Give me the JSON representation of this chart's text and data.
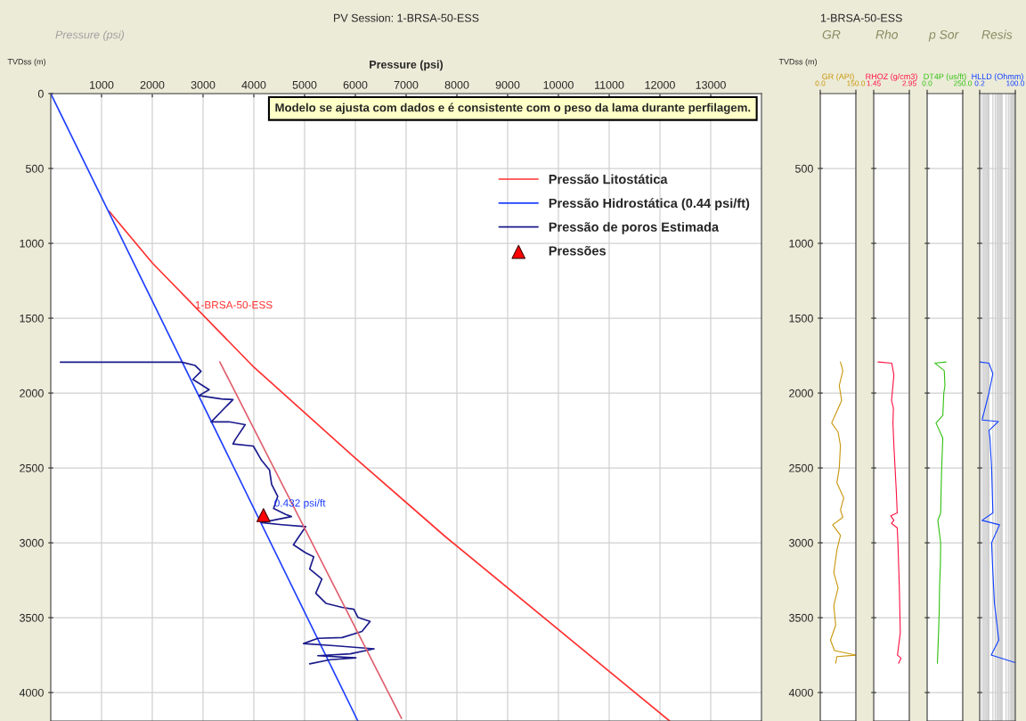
{
  "chart_data": [
    {
      "type": "line",
      "title": "PV Session: 1-BRSA-50-ESS",
      "subtitle": "Pressure (psi)",
      "xlabel": "Pressure (psi)",
      "ylabel": "TVDss (m)",
      "xlim": [
        0,
        14000
      ],
      "xticks": [
        1000,
        2000,
        3000,
        4000,
        5000,
        6000,
        7000,
        8000,
        9000,
        10000,
        11000,
        12000,
        13000
      ],
      "ylim": [
        4190,
        0
      ],
      "yticks": [
        0,
        500,
        1000,
        1500,
        2000,
        2500,
        3000,
        3500,
        4000
      ],
      "grid": true,
      "legend": "top right",
      "series": [
        {
          "name": "Pressão Litostática",
          "color": "#ff3030",
          "x": [
            1150,
            2000,
            4000,
            5980,
            7770,
            12190
          ],
          "values": [
            786,
            1131,
            1827,
            2429,
            2958,
            4190
          ]
        },
        {
          "name": "Pressão Hidrostática (0.44 psi/ft)",
          "color": "#2040ff",
          "x": [
            0,
            6050
          ],
          "values": [
            0,
            4190
          ]
        },
        {
          "name": "Pressão de poros Estimada",
          "color": "#1a1a8c",
          "x": [
            190,
            2580,
            2840,
            2960,
            2800,
            3120,
            2920,
            3360,
            3590,
            3430,
            3160,
            3510,
            3830,
            3630,
            3590,
            3990,
            4150,
            4310,
            4350,
            4470,
            4390,
            4630,
            4740,
            4150,
            4550,
            5020,
            4780,
            5020,
            5180,
            5100,
            5340,
            5220,
            5420,
            5740,
            5970,
            6050,
            6290,
            6130,
            5740,
            5260,
            4980,
            5580,
            6370,
            5900,
            5260,
            6010,
            5500,
            5100
          ],
          "values": [
            1794,
            1794,
            1815,
            1855,
            1909,
            1977,
            2017,
            2039,
            2044,
            2098,
            2192,
            2192,
            2211,
            2313,
            2340,
            2354,
            2448,
            2515,
            2609,
            2690,
            2771,
            2811,
            2825,
            2865,
            2879,
            2892,
            3013,
            3067,
            3094,
            3175,
            3242,
            3337,
            3404,
            3431,
            3444,
            3498,
            3525,
            3592,
            3633,
            3638,
            3673,
            3687,
            3708,
            3741,
            3754,
            3768,
            3781,
            3808
          ]
        },
        {
          "name": "Pressões",
          "type": "scatter",
          "marker": "triangle",
          "color": "#ff0000",
          "x": [
            4190
          ],
          "values": [
            2815
          ]
        },
        {
          "type": "line",
          "color": "#e06070",
          "x": [
            3330,
            6910
          ],
          "values": [
            1792,
            4173
          ]
        }
      ],
      "annotations": [
        "Modelo se ajusta com dados e é consistente com o peso da lama durante perfilagem.",
        {
          "text": "1-BRSA-50-ESS",
          "x": 2840,
          "y": 1417
        },
        {
          "text": "0.432 psi/ft",
          "x": 4400,
          "y": 2740
        }
      ]
    },
    {
      "type": "line",
      "title": "1-BRSA-50-ESS",
      "subtitle": "GR",
      "xlabel": "GR (API)",
      "ylabel": "TVDss (m)",
      "xlim": [
        0,
        150
      ],
      "xticks": [
        {
          "value": 0,
          "label": "0.0"
        },
        {
          "value": 150,
          "label": "150.0"
        }
      ],
      "ylim": [
        4190,
        0
      ],
      "yticks": [
        500,
        1000,
        1500,
        2000,
        2500,
        3000,
        3500,
        4000
      ],
      "grid": true,
      "series": [
        {
          "color": "#c8960a",
          "x": [
            85,
            95,
            80,
            90,
            62,
            48,
            75,
            85,
            80,
            70,
            99,
            85,
            95,
            52,
            85,
            70,
            57,
            75,
            57,
            65,
            43,
            60,
            150,
            70,
            65
          ],
          "values": [
            1792,
            1850,
            1950,
            2050,
            2150,
            2200,
            2260,
            2350,
            2500,
            2600,
            2700,
            2780,
            2830,
            2880,
            2950,
            3050,
            3200,
            3300,
            3420,
            3550,
            3650,
            3720,
            3750,
            3760,
            3804
          ]
        }
      ]
    },
    {
      "type": "line",
      "subtitle": "Rho",
      "xlabel": "RHOZ (g/cm3)",
      "xlim": [
        1.45,
        2.95
      ],
      "xticks": [
        {
          "value": 1.45,
          "label": "1.45"
        },
        {
          "value": 2.95,
          "label": "2.95"
        }
      ],
      "ylim": [
        4190,
        0
      ],
      "yticks": [
        500,
        1000,
        1500,
        2000,
        2500,
        3000,
        3500,
        4000
      ],
      "grid": true,
      "tick_labels": "x",
      "series": [
        {
          "color": "#ff1040",
          "x": [
            1.63,
            2.21,
            2.3,
            2.2,
            2.28,
            2.26,
            2.3,
            2.35,
            2.4,
            2.44,
            2.17,
            2.3,
            2.2,
            2.44,
            2.47,
            2.5,
            2.53,
            2.55,
            2.57,
            2.45,
            2.6,
            2.5
          ],
          "values": [
            1792,
            1800,
            1880,
            2050,
            2100,
            2200,
            2350,
            2500,
            2650,
            2800,
            2820,
            2850,
            2870,
            2900,
            3000,
            3150,
            3300,
            3450,
            3600,
            3750,
            3770,
            3804
          ]
        }
      ]
    },
    {
      "type": "line",
      "subtitle": "p Sor",
      "xlabel": "DT4P (us/ft)",
      "xlim": [
        0,
        250
      ],
      "xticks": [
        {
          "value": 0,
          "label": "0.0"
        },
        {
          "value": 250,
          "label": "250.0"
        }
      ],
      "ylim": [
        4190,
        0
      ],
      "yticks": [
        500,
        1000,
        1500,
        2000,
        2500,
        3000,
        3500,
        4000
      ],
      "grid": true,
      "tick_labels": "x",
      "series": [
        {
          "color": "#30c010",
          "x": [
            132,
            54,
            120,
            125,
            117,
            110,
            62,
            110,
            102,
            98,
            95,
            75,
            95,
            93,
            87,
            85,
            80,
            72
          ],
          "values": [
            1792,
            1800,
            1850,
            1950,
            2000,
            2150,
            2200,
            2300,
            2500,
            2650,
            2800,
            2850,
            3000,
            3150,
            3300,
            3450,
            3600,
            3804
          ]
        }
      ]
    },
    {
      "type": "line",
      "subtitle": "Resis",
      "xlabel": "HLLD (Ohmm)",
      "log": "x",
      "xlim": [
        0.2,
        100
      ],
      "xticks": [
        {
          "value": 0.2,
          "label": "0.2"
        },
        {
          "value": 100,
          "label": "100.0"
        }
      ],
      "ylim": [
        4190,
        0
      ],
      "yticks": [
        500,
        1000,
        1500,
        2000,
        2500,
        3000,
        3500,
        4000
      ],
      "grid": true,
      "tick_labels": "x",
      "series": [
        {
          "color": "#1040ff",
          "x": [
            0.2,
            1.0,
            2.0,
            1.0,
            0.3,
            5.3,
            1.0,
            1.2,
            1.6,
            2.0,
            0.3,
            6.4,
            1.6,
            2.0,
            2.6,
            5.6,
            1.5,
            100
          ],
          "values": [
            1792,
            1800,
            1870,
            2000,
            2180,
            2190,
            2250,
            2300,
            2500,
            2800,
            2850,
            2880,
            3000,
            3200,
            3400,
            3650,
            3750,
            3800
          ]
        }
      ]
    }
  ]
}
